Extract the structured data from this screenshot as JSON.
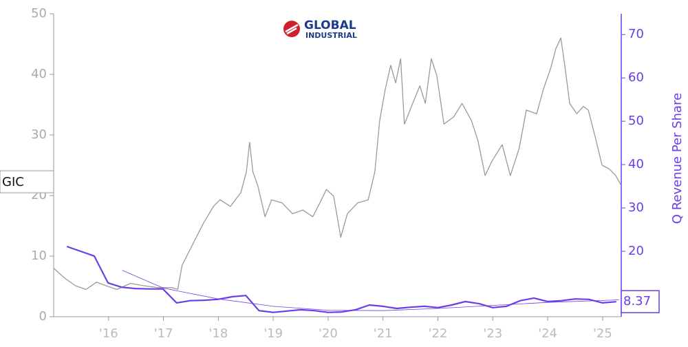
{
  "chart_data": {
    "type": "line",
    "logo": [
      "GLOBAL",
      "INDUSTRIAL"
    ],
    "y2label": "Q Revenue Per Share",
    "xlim": [
      2015.0,
      2025.34
    ],
    "xticks": [
      {
        "value": 2016,
        "label": "'16"
      },
      {
        "value": 2017,
        "label": "'17"
      },
      {
        "value": 2018,
        "label": "'18"
      },
      {
        "value": 2019,
        "label": "'19"
      },
      {
        "value": 2020,
        "label": "'20"
      },
      {
        "value": 2021,
        "label": "'21"
      },
      {
        "value": 2022,
        "label": "'22"
      },
      {
        "value": 2023,
        "label": "'23"
      },
      {
        "value": 2024,
        "label": "'24"
      },
      {
        "value": 2025,
        "label": "'25"
      }
    ],
    "ylim": [
      0,
      50
    ],
    "yticks": [
      0,
      10,
      20,
      30,
      40,
      50
    ],
    "y2lim": [
      4.9,
      74.8
    ],
    "y2ticks": [
      20,
      30,
      40,
      50,
      60,
      70
    ],
    "series": [
      {
        "label": "GIC",
        "color": "#999999",
        "width": 1.3,
        "x": [
          2015.0,
          2015.21,
          2015.4,
          2015.59,
          2015.78,
          2015.96,
          2016.15,
          2016.4,
          2016.65,
          2016.9,
          2017.16,
          2017.26,
          2017.34,
          2017.53,
          2017.72,
          2017.91,
          2018.03,
          2018.22,
          2018.41,
          2018.51,
          2018.57,
          2018.63,
          2018.72,
          2018.85,
          2018.97,
          2019.16,
          2019.35,
          2019.54,
          2019.72,
          2019.85,
          2019.97,
          2020.1,
          2020.23,
          2020.35,
          2020.54,
          2020.73,
          2020.85,
          2020.94,
          2021.04,
          2021.14,
          2021.23,
          2021.32,
          2021.39,
          2021.54,
          2021.67,
          2021.77,
          2021.88,
          2021.98,
          2022.11,
          2022.29,
          2022.44,
          2022.61,
          2022.73,
          2022.86,
          2022.98,
          2023.17,
          2023.32,
          2023.48,
          2023.61,
          2023.8,
          2023.92,
          2024.05,
          2024.15,
          2024.24,
          2024.32,
          2024.4,
          2024.53,
          2024.65,
          2024.74,
          2024.87,
          2024.99,
          2025.12,
          2025.24,
          2025.33
        ],
        "values": [
          8.0,
          6.3,
          5.1,
          4.5,
          5.7,
          5.1,
          4.5,
          5.5,
          5.1,
          4.8,
          4.8,
          4.5,
          8.5,
          11.9,
          15.3,
          18.2,
          19.3,
          18.2,
          20.5,
          23.9,
          28.8,
          23.9,
          21.6,
          16.5,
          19.3,
          18.8,
          17.0,
          17.6,
          16.5,
          18.8,
          21.0,
          19.9,
          13.1,
          17.0,
          18.8,
          19.3,
          23.9,
          32.4,
          37.5,
          41.5,
          38.6,
          42.6,
          31.8,
          35.2,
          38.1,
          35.2,
          42.6,
          39.8,
          31.8,
          33.0,
          35.2,
          32.4,
          29.0,
          23.3,
          25.6,
          28.4,
          23.3,
          27.8,
          34.1,
          33.5,
          37.5,
          40.9,
          44.3,
          46.0,
          40.9,
          35.2,
          33.5,
          34.7,
          34.1,
          29.5,
          25.0,
          24.4,
          23.3,
          21.8
        ]
      },
      {
        "axis": "y2",
        "color": "#6a3de8",
        "width": 2.2,
        "x": [
          2015.24,
          2015.74,
          2015.99,
          2016.24,
          2016.49,
          2016.74,
          2016.99,
          2017.24,
          2017.49,
          2017.74,
          2017.99,
          2018.25,
          2018.5,
          2018.74,
          2019.0,
          2019.25,
          2019.5,
          2019.75,
          2020.0,
          2020.25,
          2020.5,
          2020.75,
          2021.0,
          2021.25,
          2021.5,
          2021.75,
          2022.0,
          2022.25,
          2022.5,
          2022.75,
          2023.0,
          2023.25,
          2023.5,
          2023.75,
          2024.0,
          2024.25,
          2024.5,
          2024.75,
          2025.0,
          2025.25
        ],
        "values": [
          21.1,
          18.9,
          12.7,
          11.7,
          11.4,
          11.3,
          11.3,
          8.1,
          8.6,
          8.7,
          8.9,
          9.5,
          9.8,
          6.3,
          5.9,
          6.2,
          6.5,
          6.3,
          5.9,
          6.0,
          6.5,
          7.6,
          7.3,
          6.8,
          7.1,
          7.3,
          7.0,
          7.6,
          8.4,
          7.9,
          7.0,
          7.3,
          8.6,
          9.2,
          8.4,
          8.6,
          9.0,
          8.9,
          8.1,
          8.37
        ]
      },
      {
        "axis": "y2",
        "color": "#6a3de8",
        "width": 0.8,
        "x": [
          2016.25,
          2017.0,
          2018.0,
          2019.0,
          2020.0,
          2021.0,
          2022.0,
          2023.0,
          2024.0,
          2025.3
        ],
        "values": [
          15.6,
          11.5,
          9.0,
          7.3,
          6.4,
          6.3,
          6.8,
          7.5,
          8.2,
          8.8
        ]
      }
    ]
  }
}
